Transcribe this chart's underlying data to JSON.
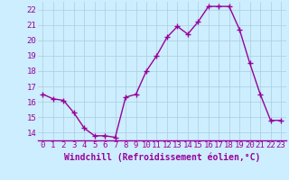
{
  "x": [
    0,
    1,
    2,
    3,
    4,
    5,
    6,
    7,
    8,
    9,
    10,
    11,
    12,
    13,
    14,
    15,
    16,
    17,
    18,
    19,
    20,
    21,
    22,
    23
  ],
  "y": [
    16.5,
    16.2,
    16.1,
    15.3,
    14.3,
    13.8,
    13.8,
    13.7,
    16.3,
    16.5,
    18.0,
    19.0,
    20.2,
    20.9,
    20.4,
    21.2,
    22.2,
    22.2,
    22.2,
    20.7,
    18.5,
    16.5,
    14.8,
    14.8
  ],
  "line_color": "#990099",
  "marker": "+",
  "markersize": 4,
  "markeredgewidth": 1.0,
  "linewidth": 1.0,
  "xlabel": "Windchill (Refroidissement éolien,°C)",
  "xlabel_fontsize": 7,
  "xlim": [
    -0.5,
    23.5
  ],
  "ylim": [
    13.5,
    22.5
  ],
  "yticks": [
    14,
    15,
    16,
    17,
    18,
    19,
    20,
    21,
    22
  ],
  "xticks": [
    0,
    1,
    2,
    3,
    4,
    5,
    6,
    7,
    8,
    9,
    10,
    11,
    12,
    13,
    14,
    15,
    16,
    17,
    18,
    19,
    20,
    21,
    22,
    23
  ],
  "background_color": "#cceeff",
  "grid_color": "#aaccdd",
  "tick_color": "#990099",
  "tick_fontsize": 6.5,
  "spine_color": "#990099"
}
